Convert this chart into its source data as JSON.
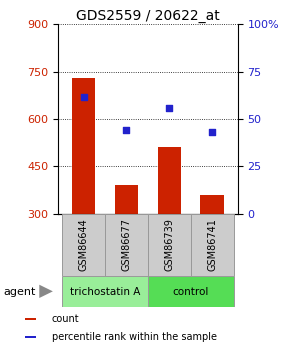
{
  "title": "GDS2559 / 20622_at",
  "samples": [
    "GSM86644",
    "GSM86677",
    "GSM86739",
    "GSM86741"
  ],
  "bar_values": [
    730,
    390,
    510,
    360
  ],
  "dot_values": [
    670,
    565,
    635,
    560
  ],
  "bar_color": "#cc2200",
  "dot_color": "#2222cc",
  "ylim_left": [
    300,
    900
  ],
  "ylim_right": [
    0,
    100
  ],
  "yticks_left": [
    300,
    450,
    600,
    750,
    900
  ],
  "yticks_right": [
    0,
    25,
    50,
    75,
    100
  ],
  "yticklabels_right": [
    "0",
    "25",
    "50",
    "75",
    "100%"
  ],
  "groups": [
    {
      "label": "trichostatin A",
      "indices": [
        0,
        1
      ],
      "color": "#99ee99"
    },
    {
      "label": "control",
      "indices": [
        2,
        3
      ],
      "color": "#55dd55"
    }
  ],
  "agent_label": "agent",
  "legend_items": [
    {
      "label": "count",
      "color": "#cc2200"
    },
    {
      "label": "percentile rank within the sample",
      "color": "#2222cc"
    }
  ],
  "title_fontsize": 10,
  "tick_fontsize": 8,
  "label_fontsize": 7,
  "bar_width": 0.55,
  "bar_bottom": 300,
  "sample_label_color": "#cccccc",
  "sample_border_color": "#999999"
}
